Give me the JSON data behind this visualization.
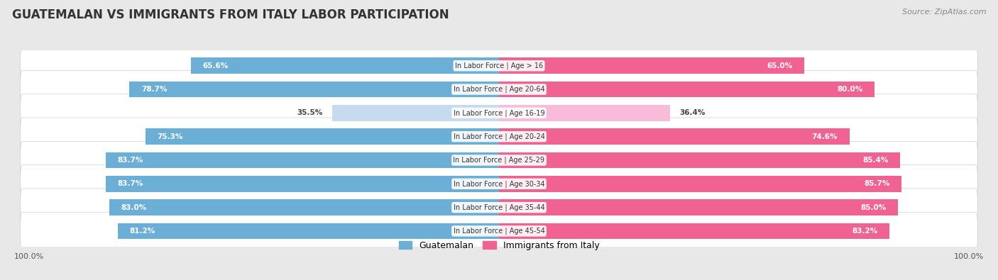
{
  "title": "GUATEMALAN VS IMMIGRANTS FROM ITALY LABOR PARTICIPATION",
  "source": "Source: ZipAtlas.com",
  "categories": [
    "In Labor Force | Age > 16",
    "In Labor Force | Age 20-64",
    "In Labor Force | Age 16-19",
    "In Labor Force | Age 20-24",
    "In Labor Force | Age 25-29",
    "In Labor Force | Age 30-34",
    "In Labor Force | Age 35-44",
    "In Labor Force | Age 45-54"
  ],
  "guatemalan": [
    65.6,
    78.7,
    35.5,
    75.3,
    83.7,
    83.7,
    83.0,
    81.2
  ],
  "italy": [
    65.0,
    80.0,
    36.4,
    74.6,
    85.4,
    85.7,
    85.0,
    83.2
  ],
  "guatemalan_color": "#6baed6",
  "guatemalan_light_color": "#c6dbef",
  "italy_color": "#f06292",
  "italy_light_color": "#f8bbd9",
  "bg_color": "#e8e8e8",
  "row_bg_color": "#ffffff",
  "bar_height": 0.68,
  "max_value": 100.0,
  "legend_guatemalan": "Guatemalan",
  "legend_italy": "Immigrants from Italy",
  "title_fontsize": 12,
  "source_fontsize": 8,
  "label_fontsize": 7.5,
  "cat_fontsize": 7.0,
  "axis_fontsize": 8
}
